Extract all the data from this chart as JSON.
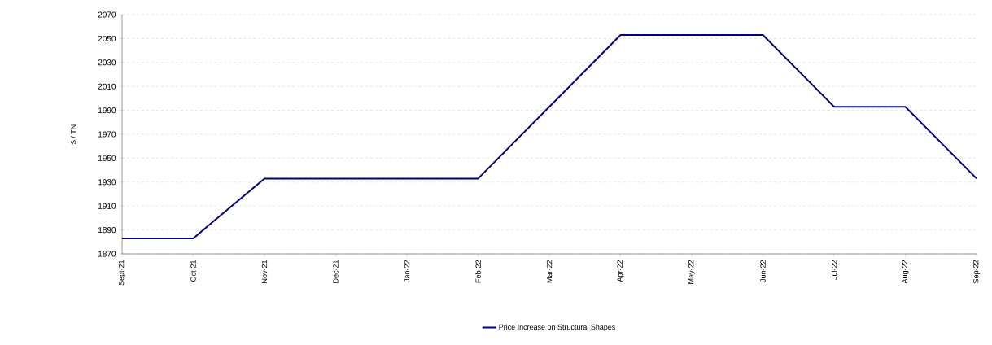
{
  "chart_data": {
    "type": "line",
    "ylabel": "$ / TN",
    "categories": [
      "Sept-21",
      "Oct-21",
      "Nov-21",
      "Dec-21",
      "Jan-22",
      "Feb-22",
      "Mar-22",
      "Apr-22",
      "May-22",
      "Jun-22",
      "Jul-22",
      "Aug-22",
      "Sep-22"
    ],
    "series": [
      {
        "name": "Price Increase on Structural Shapes",
        "color": "#000080",
        "values": [
          1883,
          1883,
          1933,
          1933,
          1933,
          1933,
          1993,
          2053,
          2053,
          2053,
          1993,
          1993,
          1933
        ]
      }
    ],
    "ylim": [
      1870,
      2070
    ],
    "yticks": [
      1870,
      1890,
      1910,
      1930,
      1950,
      1970,
      1990,
      2010,
      2030,
      2050,
      2070
    ],
    "grid": "y",
    "legend": "bottom",
    "marker": "none",
    "line_style": "solid"
  }
}
